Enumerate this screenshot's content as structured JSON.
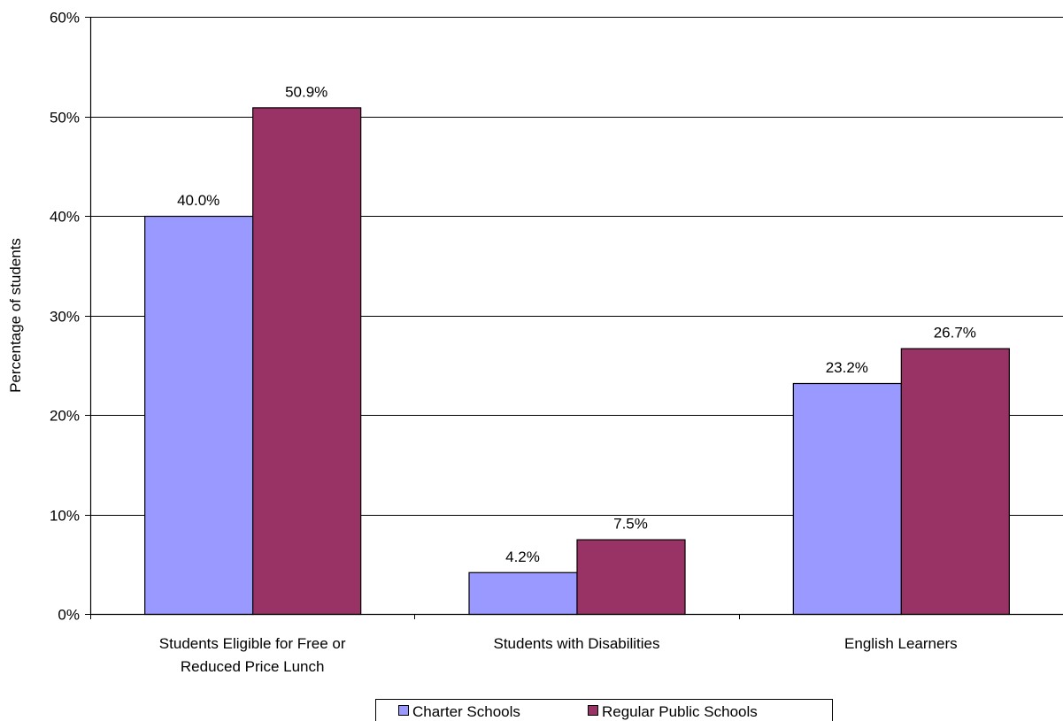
{
  "chart_data": {
    "type": "bar",
    "title": "",
    "xlabel": "",
    "ylabel": "Percentage of students",
    "ylim": [
      0,
      60
    ],
    "y_ticks": [
      "0%",
      "10%",
      "20%",
      "30%",
      "40%",
      "50%",
      "60%"
    ],
    "grid": true,
    "legend_position": "bottom",
    "categories": [
      [
        "Students Eligible for Free or",
        "Reduced Price Lunch"
      ],
      [
        "Students with Disabilities"
      ],
      [
        "English Learners"
      ]
    ],
    "series": [
      {
        "name": "Charter Schools",
        "color": "#9999ff",
        "values": [
          40.0,
          4.2,
          23.2
        ],
        "labels": [
          "40.0%",
          "4.2%",
          "23.2%"
        ]
      },
      {
        "name": "Regular Public Schools",
        "color": "#993366",
        "values": [
          50.9,
          7.5,
          26.7
        ],
        "labels": [
          "50.9%",
          "7.5%",
          "26.7%"
        ]
      }
    ]
  }
}
